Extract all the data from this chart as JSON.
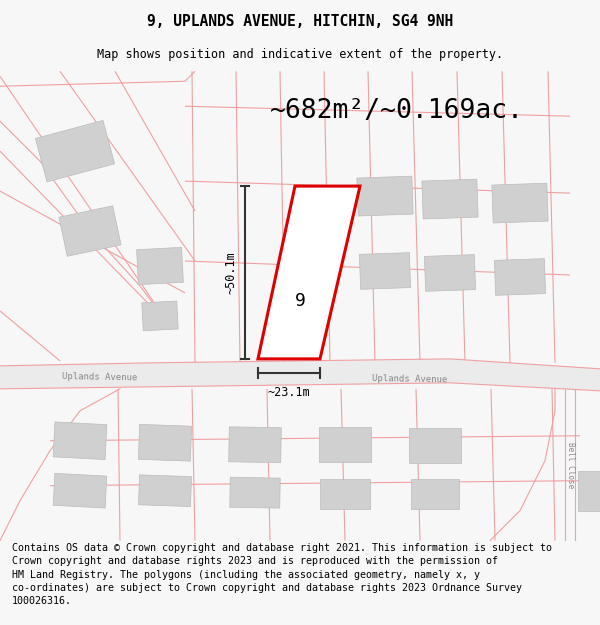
{
  "title": "9, UPLANDS AVENUE, HITCHIN, SG4 9NH",
  "subtitle": "Map shows position and indicative extent of the property.",
  "area_label": "~682m²/~0.169ac.",
  "dim_vertical": "~50.1m",
  "dim_horizontal": "~23.1m",
  "property_number": "9",
  "road_name_left": "Uplands Avenue",
  "road_name_right": "Uplands Avenue",
  "bell_close": "Bell Close",
  "copyright_text": "Contains OS data © Crown copyright and database right 2021. This information is subject to\nCrown copyright and database rights 2023 and is reproduced with the permission of\nHM Land Registry. The polygons (including the associated geometry, namely x, y\nco-ordinates) are subject to Crown copyright and database rights 2023 Ordnance Survey\n100026316.",
  "bg_color": "#f7f7f7",
  "map_bg": "#ffffff",
  "plot_line_color": "#f0a0a0",
  "highlight_color": "#dd0000",
  "building_color": "#d0d0d0",
  "building_edge_color": "#bbbbbb",
  "dim_line_color": "#333333",
  "road_fill": "#ebebeb",
  "title_fontsize": 10.5,
  "subtitle_fontsize": 8.5,
  "area_fontsize": 19,
  "copyright_fontsize": 7.2,
  "prop_number_fontsize": 13
}
